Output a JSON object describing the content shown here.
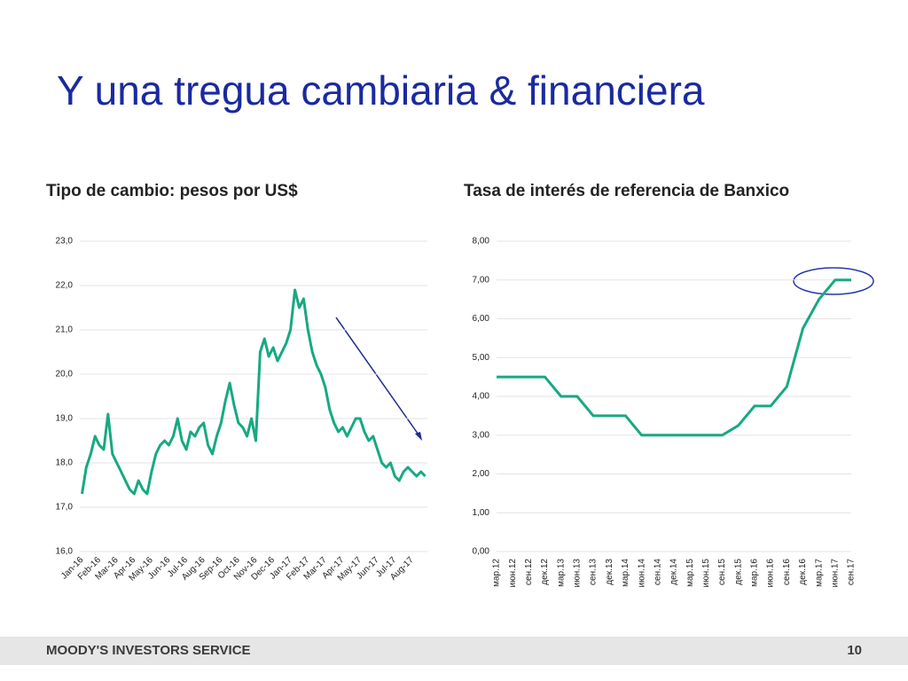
{
  "title": "Y una tregua cambiaria & financiera",
  "footer": "MOODY'S INVESTORS SERVICE",
  "page_number": "10",
  "chart_data": [
    {
      "type": "line",
      "title": "Tipo de cambio: pesos por US$",
      "color": "#17a982",
      "grid": true,
      "categories": [
        "Jan-16",
        null,
        null,
        null,
        "Feb-16",
        null,
        null,
        null,
        "Mar-16",
        null,
        null,
        null,
        "Apr-16",
        null,
        null,
        null,
        "May-16",
        null,
        null,
        null,
        "Jun-16",
        null,
        null,
        null,
        "Jul-16",
        null,
        null,
        null,
        "Aug-16",
        null,
        null,
        null,
        "Sep-16",
        null,
        null,
        null,
        "Oct-16",
        null,
        null,
        null,
        "Nov-16",
        null,
        null,
        null,
        "Dec-16",
        null,
        null,
        null,
        "Jan-17",
        null,
        null,
        null,
        "Feb-17",
        null,
        null,
        null,
        "Mar-17",
        null,
        null,
        null,
        "Apr-17",
        null,
        null,
        null,
        "May-17",
        null,
        null,
        null,
        "Jun-17",
        null,
        null,
        null,
        "Jul-17",
        null,
        null,
        null,
        "Aug-17",
        null,
        null,
        null
      ],
      "values": [
        17.3,
        17.9,
        18.2,
        18.6,
        18.4,
        18.3,
        19.1,
        18.2,
        18.0,
        17.8,
        17.6,
        17.4,
        17.3,
        17.6,
        17.4,
        17.3,
        17.8,
        18.2,
        18.4,
        18.5,
        18.4,
        18.6,
        19.0,
        18.5,
        18.3,
        18.7,
        18.6,
        18.8,
        18.9,
        18.4,
        18.2,
        18.6,
        18.9,
        19.4,
        19.8,
        19.3,
        18.9,
        18.8,
        18.6,
        19.0,
        18.5,
        20.5,
        20.8,
        20.4,
        20.6,
        20.3,
        20.5,
        20.7,
        21.0,
        21.9,
        21.5,
        21.7,
        21.0,
        20.5,
        20.2,
        20.0,
        19.7,
        19.2,
        18.9,
        18.7,
        18.8,
        18.6,
        18.8,
        19.0,
        19.0,
        18.7,
        18.5,
        18.6,
        18.3,
        18.0,
        17.9,
        18.0,
        17.7,
        17.6,
        17.8,
        17.9,
        17.8,
        17.7,
        17.8,
        17.7
      ],
      "ylim": [
        16,
        23
      ],
      "yticks": [
        {
          "value": 16,
          "label": "16,0"
        },
        {
          "value": 17,
          "label": "17,0"
        },
        {
          "value": 18,
          "label": "18,0"
        },
        {
          "value": 19,
          "label": "19,0"
        },
        {
          "value": 20,
          "label": "20,0"
        },
        {
          "value": 21,
          "label": "21,0"
        },
        {
          "value": 22,
          "label": "22,0"
        },
        {
          "value": 23,
          "label": "23,0"
        }
      ]
    },
    {
      "type": "line",
      "title": "Tasa de interés de referencia de Banxico",
      "color": "#17a982",
      "grid": true,
      "categories": [
        "мар.12",
        "июн.12",
        "сен.12",
        "дек.12",
        "мар.13",
        "июн.13",
        "сен.13",
        "дек.13",
        "мар.14",
        "июн.14",
        "сен.14",
        "дек.14",
        "мар.15",
        "июн.15",
        "сен.15",
        "дек.15",
        "мар.16",
        "июн.16",
        "сен.16",
        "дек.16",
        "мар.17",
        "июн.17",
        "сен.17"
      ],
      "values": [
        4.5,
        4.5,
        4.5,
        4.5,
        4.0,
        4.0,
        3.5,
        3.5,
        3.5,
        3.0,
        3.0,
        3.0,
        3.0,
        3.0,
        3.0,
        3.25,
        3.75,
        3.75,
        4.25,
        5.75,
        6.5,
        7.0,
        7.0
      ],
      "ylim": [
        0,
        8
      ],
      "yticks": [
        {
          "value": 0,
          "label": "0,00"
        },
        {
          "value": 1,
          "label": "1,00"
        },
        {
          "value": 2,
          "label": "2,00"
        },
        {
          "value": 3,
          "label": "3,00"
        },
        {
          "value": 4,
          "label": "4,00"
        },
        {
          "value": 5,
          "label": "5,00"
        },
        {
          "value": 6,
          "label": "6,00"
        },
        {
          "value": 7,
          "label": "7,00"
        },
        {
          "value": 8,
          "label": "8,00"
        }
      ]
    }
  ]
}
